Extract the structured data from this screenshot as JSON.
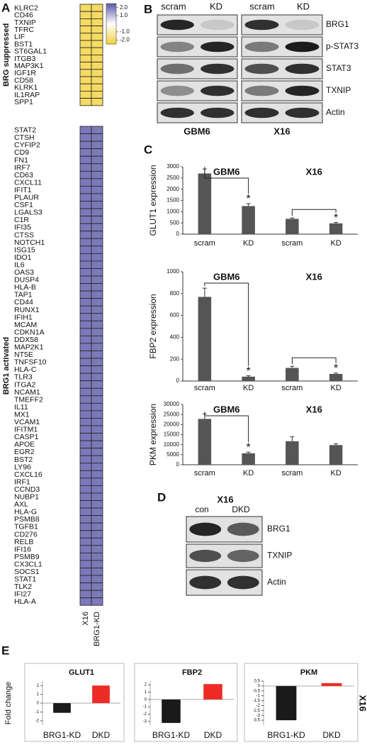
{
  "panel_labels": [
    "A",
    "B",
    "C",
    "D",
    "E"
  ],
  "panel_b": {
    "lanes": [
      "scram",
      "KD",
      "scram",
      "KD"
    ],
    "cell_lines": [
      "GBM6",
      "X16"
    ],
    "proteins": [
      "BRG1",
      "p-STAT3",
      "STAT3",
      "TXNIP",
      "Actin"
    ]
  },
  "panel_d": {
    "cell_line": "X16",
    "lanes": [
      "con",
      "DKD"
    ],
    "proteins": [
      "BRG1",
      "TXNIP",
      "Actin"
    ]
  },
  "chart_data": [
    {
      "type": "heatmap",
      "columns": [
        "X16",
        "BRG1-KD"
      ],
      "zlim": [
        -2.5,
        2.5
      ],
      "low_color": "#f2d23c",
      "mid_color": "#ffffff",
      "high_color": "#5a58a8",
      "zticks": [
        {
          "value": 2,
          "label": "2.0"
        },
        {
          "value": 1,
          "label": "1.0"
        },
        {
          "value": -1,
          "label": "-1.0"
        },
        {
          "value": -2,
          "label": "-2.0"
        }
      ],
      "groups": [
        {
          "label": "BRG suppressed",
          "genes": [
            "KLRC2",
            "CD46",
            "TXNIP",
            "TFRC",
            "LIF",
            "BST1",
            "ST6GAL1",
            "ITGB3",
            "MAP3K1",
            "IGF1R",
            "CD58",
            "KLRK1",
            "IL1RAP",
            "SPP1"
          ],
          "values": [
            [
              -2,
              -2
            ],
            [
              -2,
              -2
            ],
            [
              -2,
              -2
            ],
            [
              -2,
              -2
            ],
            [
              -2,
              -2
            ],
            [
              -2,
              -2
            ],
            [
              -2,
              -2
            ],
            [
              -2,
              -2
            ],
            [
              -2,
              -2
            ],
            [
              -2,
              -2
            ],
            [
              -2,
              -2
            ],
            [
              -2,
              -2
            ],
            [
              -2,
              -2
            ],
            [
              -2,
              -2
            ]
          ]
        },
        {
          "label": "BRG1 activated",
          "genes": [
            "STAT2",
            "CTSH",
            "CYFIP2",
            "CD9",
            "FN1",
            "IRF7",
            "CD63",
            "CXCL11",
            "IFIT1",
            "PLAUR",
            "CSF1",
            "LGALS3",
            "C1R",
            "IFI35",
            "CTSS",
            "NOTCH1",
            "ISG15",
            "IDO1",
            "IL6",
            "OAS3",
            "DUSP4",
            "HLA-B",
            "TAP1",
            "CD44",
            "RUNX1",
            "IFIH1",
            "MCAM",
            "CDKN1A",
            "DDX58",
            "MAP2K1",
            "NT5E",
            "TNFSF10",
            "HLA-C",
            "TLR3",
            "ITGA2",
            "NCAM1",
            "TMEFF2",
            "IL11",
            "MX1",
            "VCAM1",
            "IFITM1",
            "CASP1",
            "APOE",
            "EGR2",
            "BST2",
            "LY96",
            "CXCL16",
            "IRF1",
            "CCND3",
            "NUBP1",
            "AXL",
            "HLA-G",
            "PSMB8",
            "TGFB1",
            "CD276",
            "RELB",
            "IFI16",
            "PSMB9",
            "CX3CL1",
            "SOCS1",
            "STAT1",
            "TLK2",
            "IFI27",
            "HLA-A"
          ],
          "values": [
            [
              2,
              2
            ],
            [
              2,
              2
            ],
            [
              2,
              2
            ],
            [
              2,
              2
            ],
            [
              2,
              2
            ],
            [
              2,
              2
            ],
            [
              2,
              2
            ],
            [
              2,
              2
            ],
            [
              2,
              2
            ],
            [
              2,
              2
            ],
            [
              2,
              2
            ],
            [
              2,
              2
            ],
            [
              2,
              2
            ],
            [
              2,
              2
            ],
            [
              2,
              2
            ],
            [
              2,
              2
            ],
            [
              2,
              2
            ],
            [
              2,
              2
            ],
            [
              2,
              2
            ],
            [
              2,
              2
            ],
            [
              2,
              2
            ],
            [
              2,
              2
            ],
            [
              2,
              2
            ],
            [
              2,
              2
            ],
            [
              2,
              2
            ],
            [
              2,
              2
            ],
            [
              2,
              2
            ],
            [
              2,
              2
            ],
            [
              2,
              2
            ],
            [
              2,
              2
            ],
            [
              2,
              2
            ],
            [
              2,
              2
            ],
            [
              2,
              2
            ],
            [
              2,
              2
            ],
            [
              2,
              2
            ],
            [
              2,
              2
            ],
            [
              2,
              2
            ],
            [
              2,
              2
            ],
            [
              2,
              2
            ],
            [
              2,
              2
            ],
            [
              2,
              2
            ],
            [
              2,
              2
            ],
            [
              2,
              2
            ],
            [
              2,
              2
            ],
            [
              2,
              2
            ],
            [
              2,
              2
            ],
            [
              2,
              2
            ],
            [
              2,
              2
            ],
            [
              2,
              2
            ],
            [
              2,
              2
            ],
            [
              2,
              2
            ],
            [
              2,
              2
            ],
            [
              2,
              2
            ],
            [
              2,
              2
            ],
            [
              2,
              2
            ],
            [
              2,
              2
            ],
            [
              2,
              2
            ],
            [
              2,
              2
            ],
            [
              2,
              2
            ],
            [
              2,
              2
            ],
            [
              2,
              2
            ],
            [
              2,
              2
            ],
            [
              2,
              2
            ],
            [
              2,
              2
            ]
          ]
        }
      ]
    },
    {
      "type": "bar",
      "y_label": "GLUT1 expression",
      "groups": [
        "GBM6",
        "X16"
      ],
      "categories": [
        "scram",
        "KD",
        "scram",
        "KD"
      ],
      "values": [
        2700,
        1250,
        680,
        480
      ],
      "errors": [
        200,
        110,
        40,
        40
      ],
      "markers": [
        null,
        "*",
        null,
        "*"
      ],
      "color": "#555555",
      "ylim": [
        0,
        3000
      ],
      "yticks": [
        0,
        500,
        1000,
        1500,
        2000,
        2500,
        3000
      ]
    },
    {
      "type": "bar",
      "y_label": "FBP2 expression",
      "groups": [
        "GBM6",
        "X16"
      ],
      "categories": [
        "scram",
        "KD",
        "scram",
        "KD"
      ],
      "values": [
        770,
        40,
        120,
        65
      ],
      "errors": [
        80,
        8,
        15,
        8
      ],
      "markers": [
        null,
        "*",
        null,
        "*"
      ],
      "color": "#555555",
      "ylim": [
        0,
        1000
      ],
      "yticks": [
        0,
        200,
        400,
        600,
        800,
        1000
      ]
    },
    {
      "type": "bar",
      "y_label": "PKM expression",
      "groups": [
        "GBM6",
        "X16"
      ],
      "categories": [
        "scram",
        "KD",
        "scram",
        "KD"
      ],
      "values": [
        22800,
        5700,
        11700,
        9800
      ],
      "errors": [
        2500,
        600,
        2200,
        600
      ],
      "markers": [
        null,
        "*",
        null,
        null
      ],
      "color": "#555555",
      "ylim": [
        0,
        30000
      ],
      "yticks": [
        0,
        5000,
        10000,
        15000,
        20000,
        25000,
        30000
      ]
    },
    {
      "type": "bar",
      "title": "GLUT1",
      "y_label": "Fold change",
      "categories": [
        "BRG1-KD",
        "DKD"
      ],
      "values": [
        -1.1,
        2.0
      ],
      "colors": [
        "#1a1a1a",
        "#ee2b24"
      ],
      "ylim": [
        -2.5,
        2.5
      ],
      "yticks": [
        2,
        1,
        0,
        -1,
        -2
      ]
    },
    {
      "type": "bar",
      "title": "FBP2",
      "categories": [
        "BRG1-KD",
        "DKD"
      ],
      "values": [
        -3.2,
        2.1
      ],
      "colors": [
        "#1a1a1a",
        "#ee2b24"
      ],
      "ylim": [
        -3.5,
        2.5
      ],
      "yticks": [
        2,
        1,
        0,
        -1,
        -2,
        -3
      ]
    },
    {
      "type": "bar",
      "title": "PKM",
      "side_label": "X16",
      "categories": [
        "BRG1-KD",
        "DKD"
      ],
      "values": [
        -3.5,
        0.3
      ],
      "colors": [
        "#1a1a1a",
        "#ee2b24"
      ],
      "ylim": [
        -4,
        0.5
      ],
      "yticks": [
        0.5,
        0,
        -0.5,
        -1,
        -1.5,
        -2,
        -2.5,
        -3,
        -3.5
      ]
    }
  ]
}
